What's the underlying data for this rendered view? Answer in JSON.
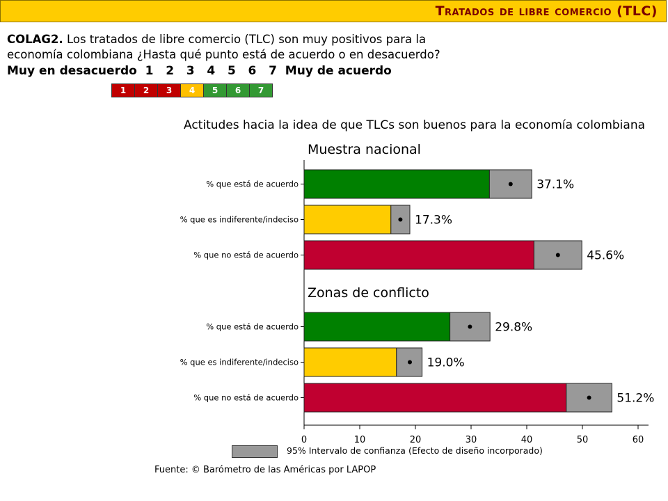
{
  "header": {
    "title": "Tratados de libre comercio (TLC)"
  },
  "question": {
    "code": "COLAG2.",
    "text": "Los tratados de libre comercio (TLC) son muy positivos para la economía colombiana ¿Hasta qué punto está de acuerdo o en desacuerdo?",
    "scale_text": "Muy en desacuerdo  1   2   3   4   5   6   7  Muy de acuerdo"
  },
  "scale_boxes": [
    {
      "label": "1",
      "color": "#C00000"
    },
    {
      "label": "2",
      "color": "#C00000"
    },
    {
      "label": "3",
      "color": "#C00000"
    },
    {
      "label": "4",
      "color": "#FFC000"
    },
    {
      "label": "5",
      "color": "#339933"
    },
    {
      "label": "6",
      "color": "#339933"
    },
    {
      "label": "7",
      "color": "#339933"
    }
  ],
  "chart_data": {
    "type": "bar",
    "orientation": "horizontal",
    "title": "Actitudes hacia la idea de que TLCs son buenos para la economía colombiana",
    "xlim": [
      0,
      60
    ],
    "xticks": [
      0,
      10,
      20,
      30,
      40,
      50,
      60
    ],
    "categories": [
      "% que está de acuerdo",
      "% que es indiferente/indeciso",
      "% que no está de acuerdo"
    ],
    "colors": [
      "#008000",
      "#FFCC00",
      "#C00030"
    ],
    "panels": [
      {
        "name": "Muestra nacional",
        "values": [
          37.1,
          17.3,
          45.6
        ],
        "labels": [
          "37.1%",
          "17.3%",
          "45.6%"
        ],
        "ci_low": [
          33.3,
          15.6,
          41.3
        ],
        "ci_high": [
          40.9,
          19.0,
          49.9
        ]
      },
      {
        "name": "Zonas de conflicto",
        "values": [
          29.8,
          19.0,
          51.2
        ],
        "labels": [
          "29.8%",
          "19.0%",
          "51.2%"
        ],
        "ci_low": [
          26.2,
          16.6,
          47.1
        ],
        "ci_high": [
          33.4,
          21.2,
          55.3
        ]
      }
    ],
    "legend": "95% Intervalo de confianza (Efecto de diseño incorporado)"
  },
  "source": "Fuente: © Barómetro de las Américas por LAPOP"
}
